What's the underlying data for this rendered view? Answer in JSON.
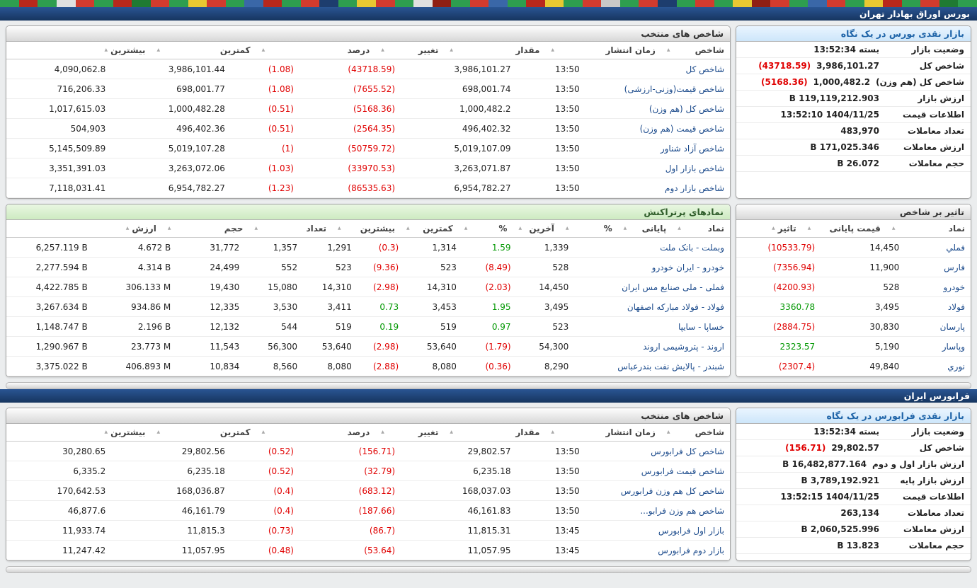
{
  "header": {
    "title": "بورس اوراق بهادار تهران"
  },
  "fara_header": {
    "title": "فرابورس ایران"
  },
  "colors": {
    "negative": "#e00000",
    "positive": "#009700",
    "navy": "#16355f",
    "glance_header_blue": "#cde6fa",
    "top_symbols_header_green": "#cdeac1"
  },
  "ticker_colors": [
    "#2e9e4f",
    "#1f7a33",
    "#d23b2e",
    "#2e9e4f",
    "#b8281c",
    "#e8c832",
    "#2e9e4f",
    "#d23b2e",
    "#3a67a8",
    "#2e9e4f",
    "#d23b2e",
    "#8f1f14",
    "#e8c832",
    "#2e9e4f",
    "#d23b2e",
    "#2e9e4f",
    "#1d3d6e",
    "#d23b2e",
    "#2e9e4f",
    "#c8c8c8",
    "#d23b2e",
    "#2e9e4f",
    "#e8c832",
    "#b8281c",
    "#2e9e4f",
    "#3a67a8",
    "#d23b2e",
    "#2e9e4f",
    "#8f1f14",
    "#e0e0e0",
    "#2e9e4f",
    "#d23b2e",
    "#e8c832",
    "#2e9e4f",
    "#1d3d6e",
    "#d23b2e",
    "#2e9e4f",
    "#b8281c",
    "#3a67a8",
    "#2e9e4f",
    "#d23b2e",
    "#e8c832",
    "#2e9e4f",
    "#d23b2e",
    "#1f7a33",
    "#b8281c",
    "#2e9e4f",
    "#d23b2e",
    "#e0e0e0",
    "#2e9e4f",
    "#b8281c",
    "#2e9e4f"
  ],
  "bourse_glance": {
    "title": "بازار نقدی بورس در یک نگاه",
    "rows": [
      {
        "label": "وضعیت بازار",
        "value": "بسته 13:52:34"
      },
      {
        "label": "شاخص کل",
        "value": "3,986,101.27",
        "change": "(43718.59)"
      },
      {
        "label": "شاخص کل (هم وزن)",
        "value": "1,000,482.2",
        "change": "(5168.36)"
      },
      {
        "label": "ارزش بازار",
        "value": "119,119,212.903 B"
      },
      {
        "label": "اطلاعات قیمت",
        "value": "1404/11/25 13:52:10"
      },
      {
        "label": "تعداد معاملات",
        "value": "483,970"
      },
      {
        "label": "ارزش معاملات",
        "value": "171,025.346 B"
      },
      {
        "label": "حجم معاملات",
        "value": "26.072 B"
      }
    ]
  },
  "bourse_indices": {
    "title": "شاخص های منتخب",
    "headers": [
      "شاخص",
      "زمان انتشار",
      "مقدار",
      "تغییر",
      "درصد",
      "کمترین",
      "بیشترین"
    ],
    "rows": [
      {
        "name": "شاخص کل",
        "time": "13:50",
        "value": "3,986,101.27",
        "change": "(43718.59)",
        "percent": "(1.08)",
        "low": "3,986,101.44",
        "high": "4,090,062.8"
      },
      {
        "name": "شاخص قیمت(وزنی-ارزشی)",
        "time": "13:50",
        "value": "698,001.74",
        "change": "(7655.52)",
        "percent": "(1.08)",
        "low": "698,001.77",
        "high": "716,206.33"
      },
      {
        "name": "شاخص کل (هم وزن)",
        "time": "13:50",
        "value": "1,000,482.2",
        "change": "(5168.36)",
        "percent": "(0.51)",
        "low": "1,000,482.28",
        "high": "1,017,615.03"
      },
      {
        "name": "شاخص قیمت (هم وزن)",
        "time": "13:50",
        "value": "496,402.32",
        "change": "(2564.35)",
        "percent": "(0.51)",
        "low": "496,402.36",
        "high": "504,903"
      },
      {
        "name": "شاخص آزاد شناور",
        "time": "13:50",
        "value": "5,019,107.09",
        "change": "(50759.72)",
        "percent": "(1)",
        "low": "5,019,107.28",
        "high": "5,145,509.89"
      },
      {
        "name": "شاخص بازار اول",
        "time": "13:50",
        "value": "3,263,071.87",
        "change": "(33970.53)",
        "percent": "(1.03)",
        "low": "3,263,072.06",
        "high": "3,351,391.03"
      },
      {
        "name": "شاخص بازار دوم",
        "time": "13:50",
        "value": "6,954,782.27",
        "change": "(86535.63)",
        "percent": "(1.23)",
        "low": "6,954,782.27",
        "high": "7,118,031.41"
      }
    ]
  },
  "index_impact": {
    "title": "تاثیر بر شاخص",
    "headers": [
      "نماد",
      "قیمت پایانی",
      "تاثیر"
    ],
    "rows": [
      {
        "symbol": "فملي",
        "close": "14,450",
        "impact": "(10533.79)",
        "impact_cls": "neg"
      },
      {
        "symbol": "فارس",
        "close": "11,900",
        "impact": "(7356.94)",
        "impact_cls": "neg"
      },
      {
        "symbol": "خودرو",
        "close": "528",
        "impact": "(4200.93)",
        "impact_cls": "neg"
      },
      {
        "symbol": "فولاد",
        "close": "3,495",
        "impact": "3360.78",
        "impact_cls": "pos"
      },
      {
        "symbol": "پارسان",
        "close": "30,830",
        "impact": "(2884.75)",
        "impact_cls": "neg"
      },
      {
        "symbol": "وپاسار",
        "close": "5,190",
        "impact": "2323.57",
        "impact_cls": "pos"
      },
      {
        "symbol": "نوري",
        "close": "49,840",
        "impact": "(2307.4)",
        "impact_cls": "neg"
      }
    ]
  },
  "top_symbols": {
    "title": "نمادهای پرتراکنش",
    "headers": [
      "نماد",
      "پایانی",
      "%",
      "آخرین",
      "%",
      "کمترین",
      "بیشترین",
      "تعداد",
      "حجم",
      "ارزش"
    ],
    "rows": [
      {
        "symbol": "وبملت - بانک ملت",
        "close": "1,339",
        "close_pct": "1.59",
        "close_cls": "pos",
        "last": "1,314",
        "last_pct": "(0.3)",
        "last_cls": "neg",
        "low": "1,291",
        "high": "1,357",
        "count": "31,772",
        "volume": "4.672 B",
        "value": "6,257.119 B"
      },
      {
        "symbol": "خودرو - ایران خودرو",
        "close": "528",
        "close_pct": "(8.49)",
        "close_cls": "neg",
        "last": "523",
        "last_pct": "(9.36)",
        "last_cls": "neg",
        "low": "523",
        "high": "552",
        "count": "24,499",
        "volume": "4.314 B",
        "value": "2,277.594 B"
      },
      {
        "symbol": "فملی - ملی صنایع مس ایران",
        "close": "14,450",
        "close_pct": "(2.03)",
        "close_cls": "neg",
        "last": "14,310",
        "last_pct": "(2.98)",
        "last_cls": "neg",
        "low": "14,310",
        "high": "15,080",
        "count": "19,430",
        "volume": "306.133 M",
        "value": "4,422.785 B"
      },
      {
        "symbol": "فولاد - فولاد مبارکه اصفهان",
        "close": "3,495",
        "close_pct": "1.95",
        "close_cls": "pos",
        "last": "3,453",
        "last_pct": "0.73",
        "last_cls": "pos",
        "low": "3,411",
        "high": "3,530",
        "count": "12,335",
        "volume": "934.86 M",
        "value": "3,267.634 B"
      },
      {
        "symbol": "خساپا - سایپا",
        "close": "523",
        "close_pct": "0.97",
        "close_cls": "pos",
        "last": "519",
        "last_pct": "0.19",
        "last_cls": "pos",
        "low": "519",
        "high": "544",
        "count": "12,132",
        "volume": "2.196 B",
        "value": "1,148.747 B"
      },
      {
        "symbol": "اروند - پتروشیمی اروند",
        "close": "54,300",
        "close_pct": "(1.79)",
        "close_cls": "neg",
        "last": "53,640",
        "last_pct": "(2.98)",
        "last_cls": "neg",
        "low": "53,640",
        "high": "56,300",
        "count": "11,543",
        "volume": "23.773 M",
        "value": "1,290.967 B"
      },
      {
        "symbol": "شبندر - پالایش نفت بندرعباس",
        "close": "8,290",
        "close_pct": "(0.36)",
        "close_cls": "neg",
        "last": "8,080",
        "last_pct": "(2.88)",
        "last_cls": "neg",
        "low": "8,080",
        "high": "8,560",
        "count": "10,834",
        "volume": "406.893 M",
        "value": "3,375.022 B"
      }
    ]
  },
  "fara_glance": {
    "title": "بازار نقدی فرابورس در یک نگاه",
    "rows": [
      {
        "label": "وضعیت بازار",
        "value": "بسته 13:52:34"
      },
      {
        "label": "شاخص کل",
        "value": "29,802.57",
        "change": "(156.71)"
      },
      {
        "label": "ارزش بازار اول و دوم",
        "value": "16,482,877.164 B"
      },
      {
        "label": "ارزش بازار پایه",
        "value": "3,789,192.921 B"
      },
      {
        "label": "اطلاعات قیمت",
        "value": "1404/11/25 13:52:15"
      },
      {
        "label": "تعداد معاملات",
        "value": "263,134"
      },
      {
        "label": "ارزش معاملات",
        "value": "2,060,525.996 B"
      },
      {
        "label": "حجم معاملات",
        "value": "13.823 B"
      }
    ]
  },
  "fara_indices": {
    "title": "شاخص های منتخب",
    "headers": [
      "شاخص",
      "زمان انتشار",
      "مقدار",
      "تغییر",
      "درصد",
      "کمترین",
      "بیشترین"
    ],
    "rows": [
      {
        "name": "شاخص کل فرابورس",
        "time": "13:50",
        "value": "29,802.57",
        "change": "(156.71)",
        "percent": "(0.52)",
        "low": "29,802.56",
        "high": "30,280.65"
      },
      {
        "name": "شاخص قیمت فرابورس",
        "time": "13:50",
        "value": "6,235.18",
        "change": "(32.79)",
        "percent": "(0.52)",
        "low": "6,235.18",
        "high": "6,335.2"
      },
      {
        "name": "شاخص کل هم وزن فرابورس",
        "time": "13:50",
        "value": "168,037.03",
        "change": "(683.12)",
        "percent": "(0.4)",
        "low": "168,036.87",
        "high": "170,642.53"
      },
      {
        "name": "شاخص هم وزن فرابو...",
        "time": "13:50",
        "value": "46,161.83",
        "change": "(187.66)",
        "percent": "(0.4)",
        "low": "46,161.79",
        "high": "46,877.6"
      },
      {
        "name": "بازار اول فرابورس",
        "time": "13:45",
        "value": "11,815.31",
        "change": "(86.7)",
        "percent": "(0.73)",
        "low": "11,815.3",
        "high": "11,933.74"
      },
      {
        "name": "بازار دوم فرابورس",
        "time": "13:45",
        "value": "11,057.95",
        "change": "(53.64)",
        "percent": "(0.48)",
        "low": "11,057.95",
        "high": "11,247.42"
      }
    ]
  }
}
